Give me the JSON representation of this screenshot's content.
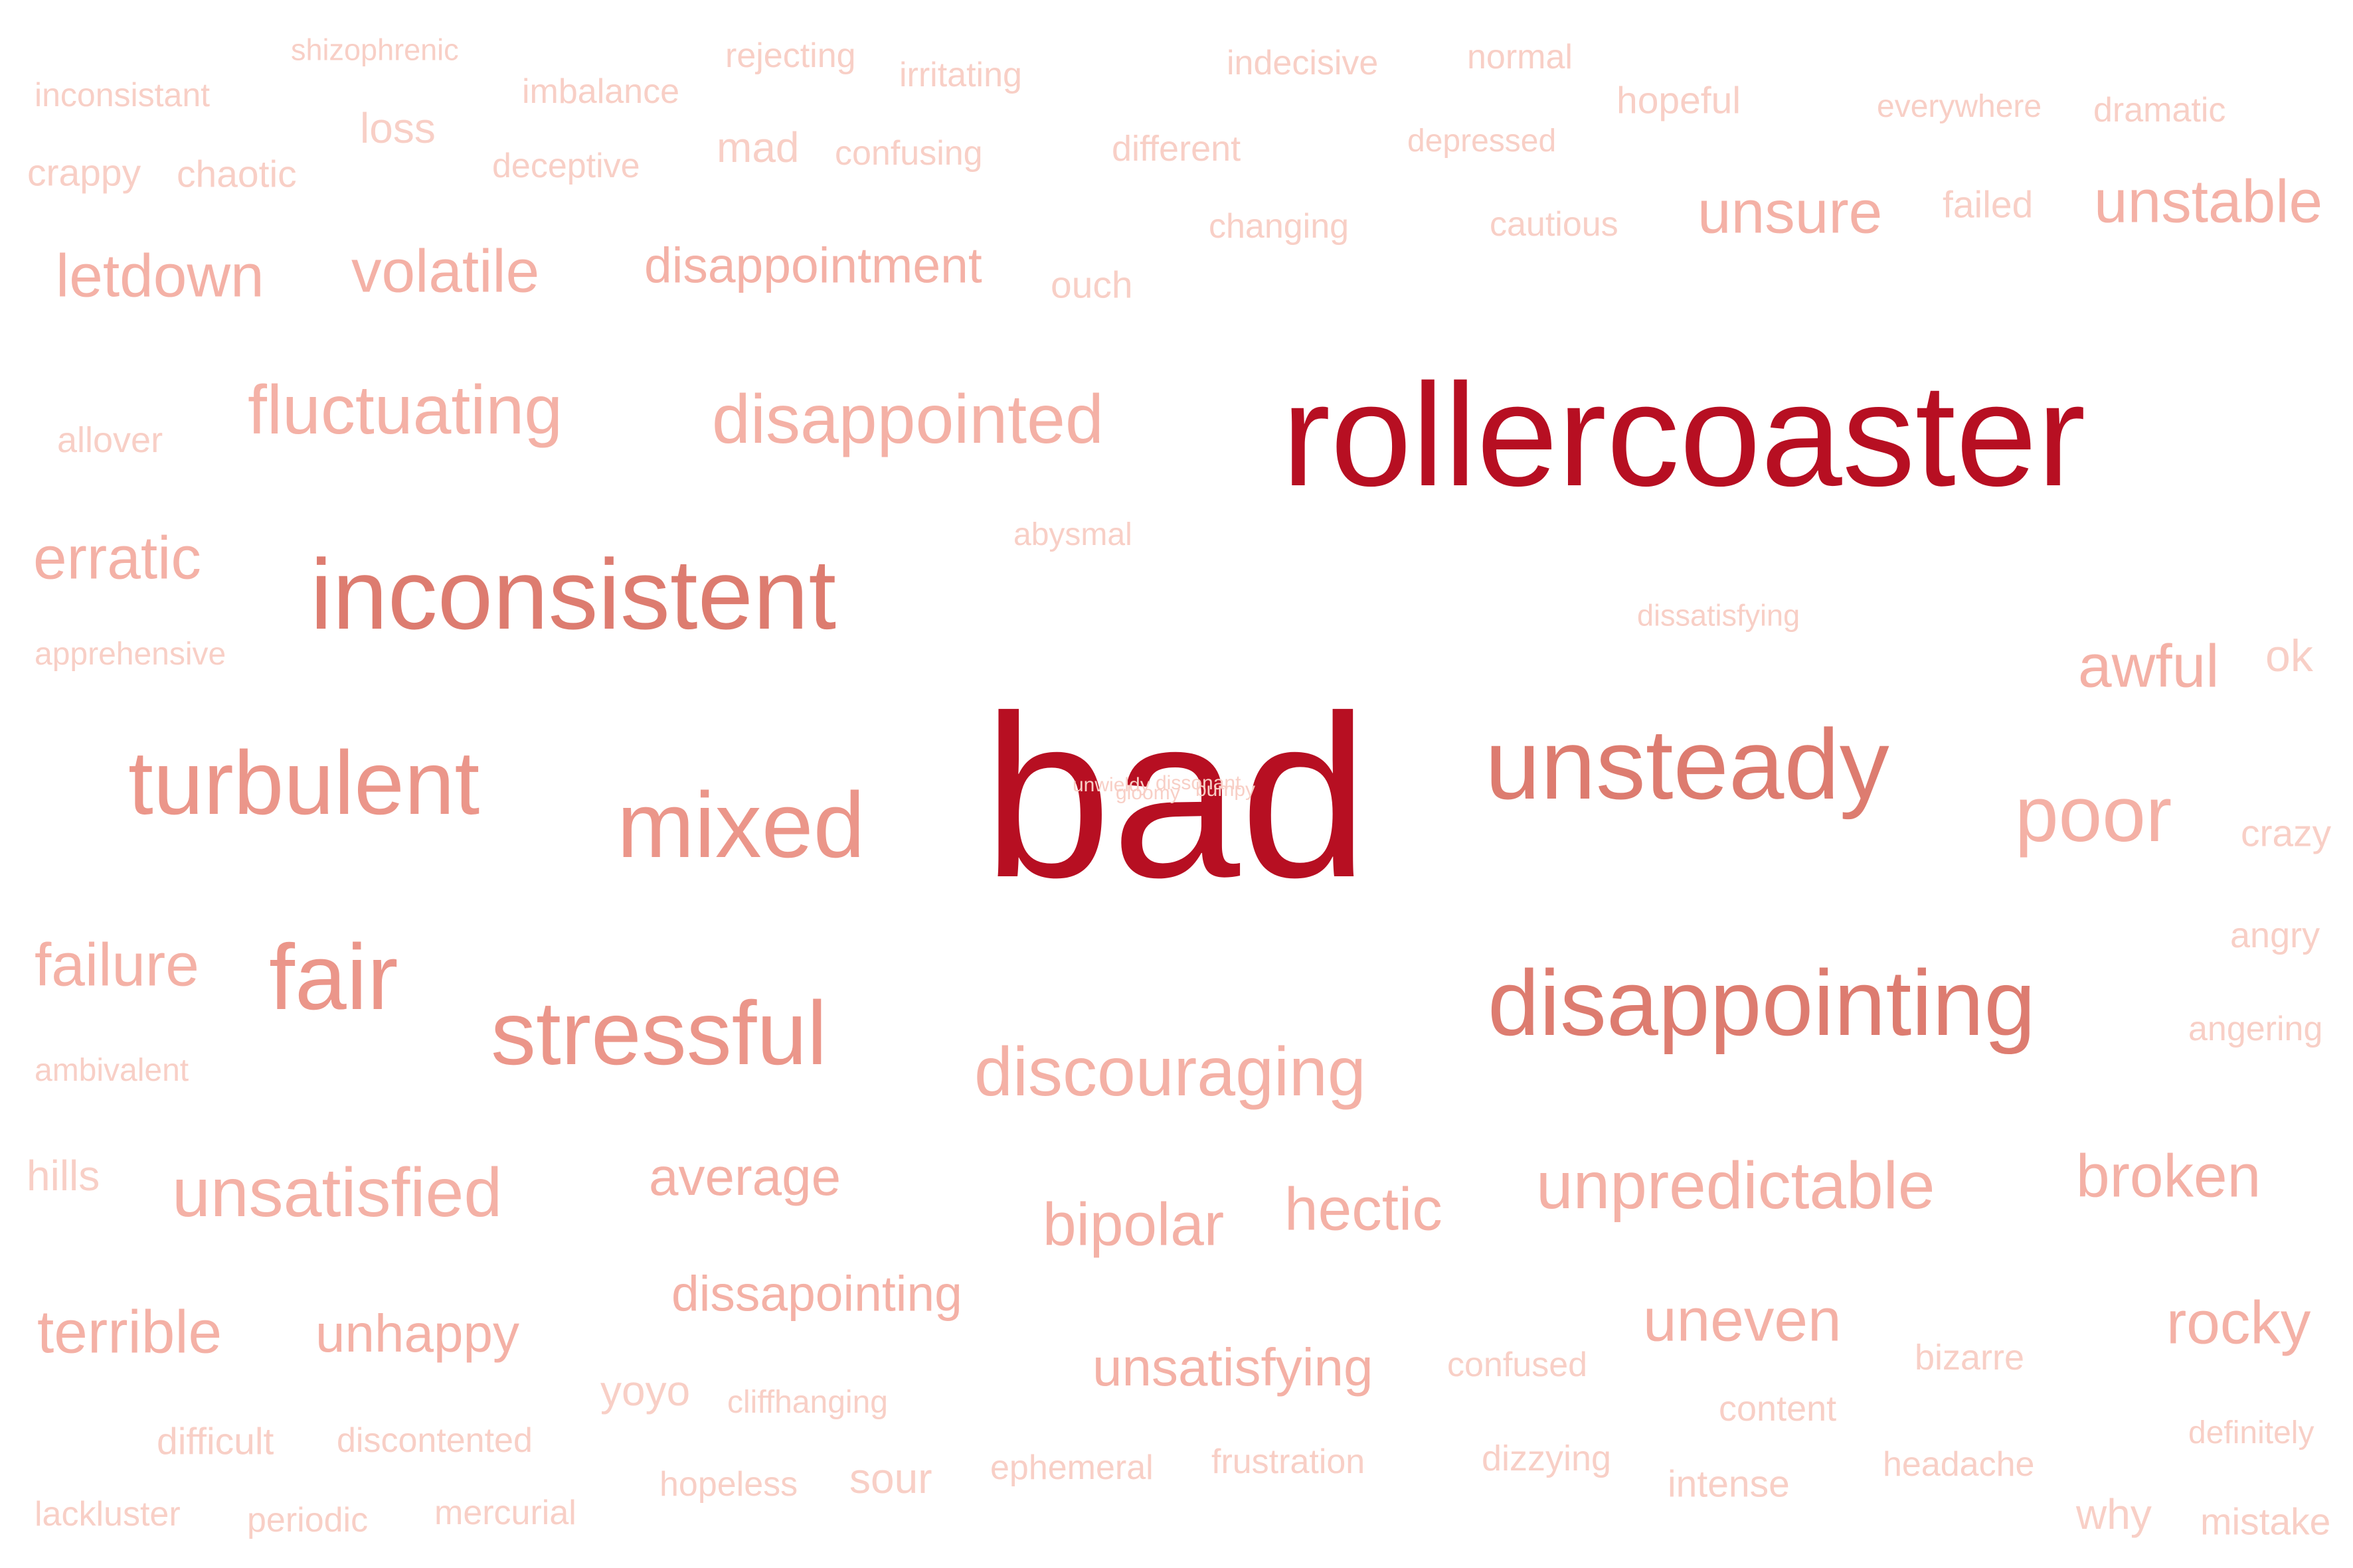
{
  "colors": {
    "background": "#ffffff",
    "strongest": "#b70f22",
    "strong": "#dd7c70",
    "medium": "#eb968a",
    "light": "#f4b1a6",
    "faint": "#f8cfc6"
  },
  "words": [
    "rollercoaster",
    "bad",
    "inconsistent",
    "unsteady",
    "mixed",
    "turbulent",
    "disappointing",
    "stressful",
    "poor",
    "fair",
    "disappointed",
    "fluctuating",
    "unsatisfied",
    "discouraging",
    "unpredictable",
    "disappointment",
    "volatile",
    "letdown",
    "erratic",
    "awful",
    "unstable",
    "unsure",
    "failure",
    "broken",
    "hectic",
    "bipolar",
    "average",
    "dissapointing",
    "unhappy",
    "terrible",
    "uneven",
    "rocky",
    "unsatisfying",
    "shizophrenic",
    "rejecting",
    "irritating",
    "indecisive",
    "normal",
    "inconsistant",
    "imbalance",
    "loss",
    "hopeful",
    "everywhere",
    "dramatic",
    "crappy",
    "chaotic",
    "deceptive",
    "mad",
    "confusing",
    "different",
    "depressed",
    "failed",
    "changing",
    "cautious",
    "ouch",
    "allover",
    "abysmal",
    "dissatisfying",
    "apprehensive",
    "ok",
    "crazy",
    "angry",
    "angering",
    "ambivalent",
    "hills",
    "yoyo",
    "cliffhanging",
    "confused",
    "bizarre",
    "content",
    "difficult",
    "discontented",
    "definitely",
    "frustration",
    "dizzying",
    "headache",
    "ephemeral",
    "sour",
    "hopeless",
    "intense",
    "lackluster",
    "periodic",
    "mercurial",
    "why",
    "mistake"
  ],
  "tiny_overlap_words": [
    "unwieldy",
    "gloomy",
    "dissonant",
    "bumpy"
  ]
}
